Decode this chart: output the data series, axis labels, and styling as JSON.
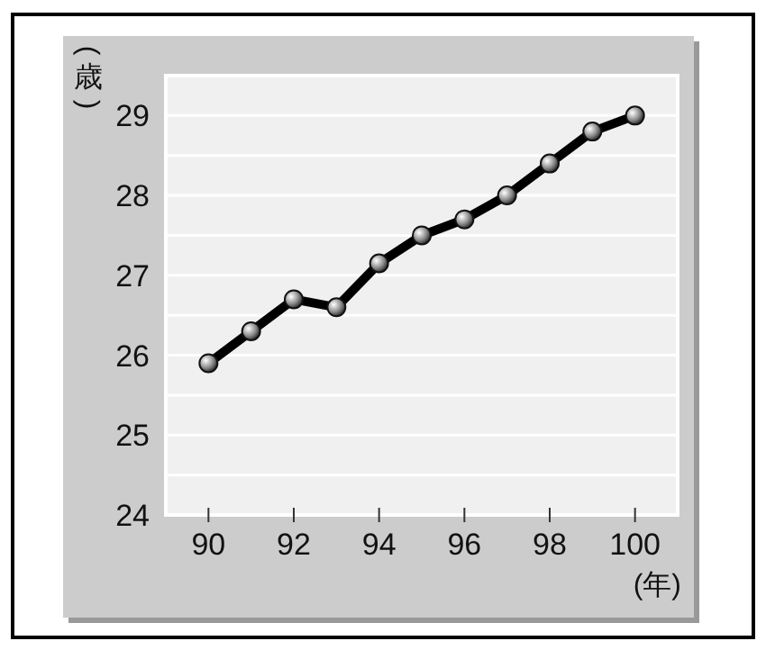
{
  "chart_data": {
    "type": "line",
    "ylabel": "(歳)",
    "xlabel": "(年)",
    "x": [
      90,
      91,
      92,
      93,
      94,
      95,
      96,
      97,
      98,
      99,
      100
    ],
    "series": [
      {
        "color": "#000000",
        "values": [
          25.9,
          26.3,
          26.7,
          26.6,
          27.15,
          27.5,
          27.7,
          28.0,
          28.4,
          28.8,
          29.0
        ]
      }
    ],
    "xlim": [
      89,
      101
    ],
    "ylim": [
      24,
      29.5
    ],
    "xticks": [
      90,
      92,
      94,
      96,
      98,
      100
    ],
    "yticks": [
      24,
      {
        "value": 24.5,
        "label": null
      },
      25,
      {
        "value": 25.5,
        "label": null
      },
      26,
      {
        "value": 26.5,
        "label": null
      },
      27,
      {
        "value": 27.5,
        "label": null
      },
      28,
      {
        "value": 28.5,
        "label": null
      },
      29
    ],
    "grid": "y",
    "marker": "circle",
    "line_style": "solid"
  }
}
